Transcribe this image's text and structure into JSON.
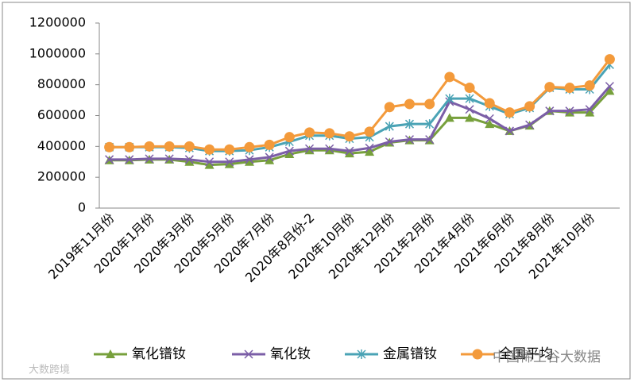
{
  "chart_data": {
    "type": "line",
    "categories": [
      "2019年11月份",
      null,
      "2020年1月份",
      null,
      "2020年3月份",
      null,
      "2020年5月份",
      null,
      "2020年7月份",
      null,
      "2020年8月份-2",
      null,
      "2020年10月份",
      null,
      "2020年12月份",
      null,
      "2021年2月份",
      null,
      "2021年4月份",
      null,
      "2021年6月份",
      null,
      "2021年8月份",
      null,
      "2021年10月份",
      null
    ],
    "series": [
      {
        "name": "氧化镨钕",
        "color": "#77a03c",
        "marker": "triangle",
        "values": [
          310000,
          310000,
          315000,
          315000,
          300000,
          280000,
          285000,
          300000,
          310000,
          350000,
          375000,
          375000,
          355000,
          365000,
          425000,
          440000,
          440000,
          585000,
          585000,
          545000,
          500000,
          535000,
          630000,
          620000,
          620000,
          760000
        ]
      },
      {
        "name": "氧化钕",
        "color": "#7b5ea7",
        "marker": "x",
        "values": [
          315000,
          315000,
          320000,
          320000,
          315000,
          300000,
          300000,
          315000,
          330000,
          370000,
          385000,
          385000,
          370000,
          390000,
          430000,
          445000,
          445000,
          690000,
          640000,
          580000,
          500000,
          540000,
          630000,
          630000,
          640000,
          790000
        ]
      },
      {
        "name": "金属镨钕",
        "color": "#4aa3b5",
        "marker": "star",
        "values": [
          395000,
          395000,
          395000,
          395000,
          390000,
          370000,
          370000,
          375000,
          395000,
          430000,
          470000,
          470000,
          450000,
          460000,
          530000,
          545000,
          545000,
          710000,
          710000,
          660000,
          610000,
          650000,
          780000,
          770000,
          770000,
          930000
        ]
      },
      {
        "name": "全国平均",
        "color": "#f39a3b",
        "marker": "circle",
        "values": [
          395000,
          395000,
          400000,
          400000,
          400000,
          380000,
          380000,
          395000,
          410000,
          460000,
          490000,
          485000,
          465000,
          495000,
          655000,
          675000,
          675000,
          850000,
          780000,
          680000,
          620000,
          660000,
          785000,
          780000,
          795000,
          965000
        ]
      }
    ],
    "ylim": [
      0,
      1200000
    ],
    "yticks": [
      0,
      200000,
      400000,
      600000,
      800000,
      1000000,
      1200000
    ],
    "watermarks": [
      "中国稀土谷大数据",
      "大数跨境"
    ]
  }
}
